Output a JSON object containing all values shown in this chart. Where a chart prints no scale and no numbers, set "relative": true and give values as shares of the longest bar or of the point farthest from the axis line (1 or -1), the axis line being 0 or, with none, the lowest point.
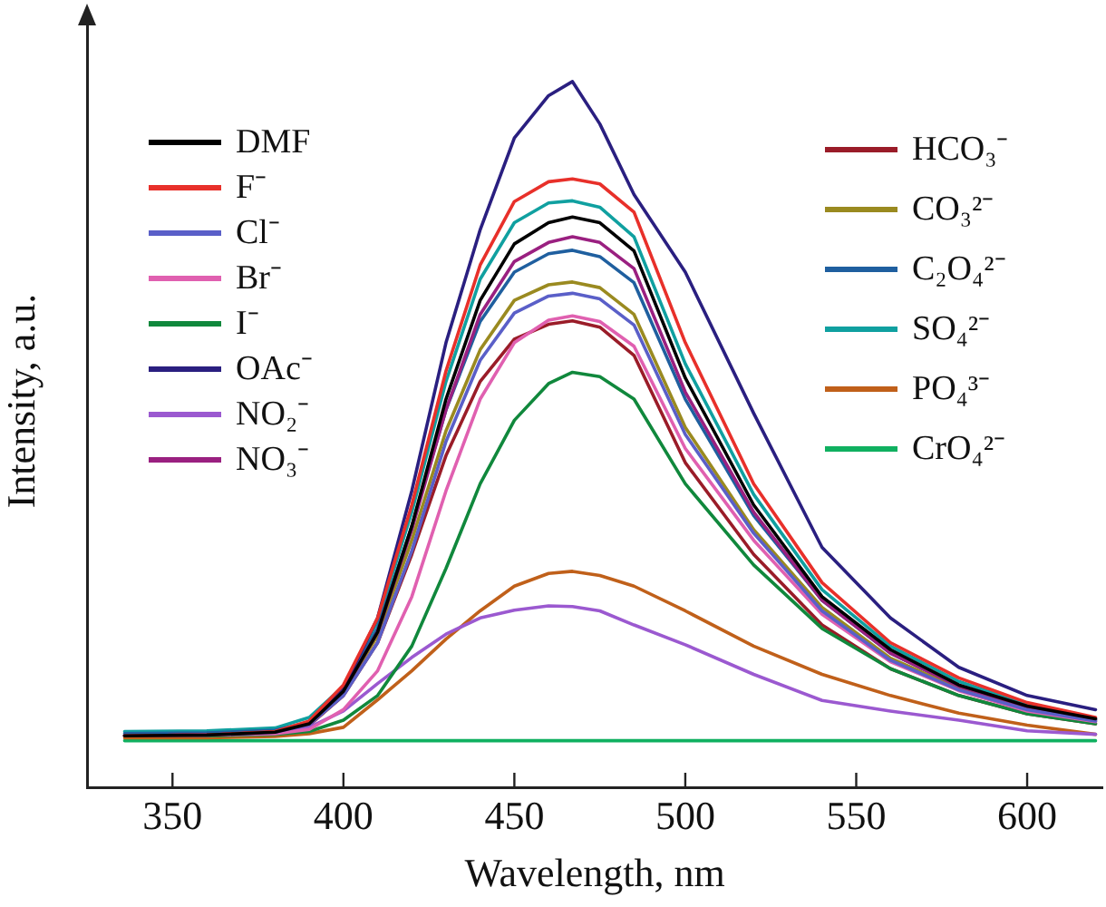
{
  "chart_data": {
    "type": "line",
    "xlabel": "Wavelength, nm",
    "ylabel": "Intensity, a.u.",
    "relative": true,
    "xlim": [
      325,
      622
    ],
    "xticks": [
      350,
      400,
      450,
      500,
      550,
      600
    ],
    "grid": false,
    "legend": "top",
    "marker": "none",
    "line_style": "solid",
    "x": [
      336,
      360,
      380,
      390,
      400,
      410,
      420,
      430,
      440,
      450,
      460,
      467,
      475,
      485,
      500,
      520,
      540,
      560,
      580,
      600,
      620
    ],
    "series": [
      {
        "name": "DMF",
        "color": "#000000",
        "values": [
          0.073,
          0.074,
          0.078,
          0.09,
          0.136,
          0.22,
          0.37,
          0.55,
          0.69,
          0.77,
          0.8,
          0.808,
          0.8,
          0.76,
          0.58,
          0.4,
          0.27,
          0.195,
          0.145,
          0.115,
          0.097
        ]
      },
      {
        "name": "F⁻",
        "color": "#e8302a",
        "values": [
          0.073,
          0.074,
          0.079,
          0.094,
          0.145,
          0.24,
          0.4,
          0.59,
          0.74,
          0.83,
          0.858,
          0.862,
          0.855,
          0.815,
          0.63,
          0.43,
          0.29,
          0.205,
          0.155,
          0.12,
          0.099
        ]
      },
      {
        "name": "Cl⁻",
        "color": "#5a5fc8",
        "values": [
          0.073,
          0.074,
          0.078,
          0.089,
          0.13,
          0.205,
          0.335,
          0.49,
          0.605,
          0.672,
          0.696,
          0.7,
          0.692,
          0.655,
          0.5,
          0.36,
          0.25,
          0.18,
          0.138,
          0.11,
          0.094
        ]
      },
      {
        "name": "Br⁻",
        "color": "#e060b0",
        "values": [
          0.073,
          0.074,
          0.076,
          0.082,
          0.11,
          0.165,
          0.27,
          0.42,
          0.55,
          0.63,
          0.662,
          0.668,
          0.66,
          0.625,
          0.48,
          0.35,
          0.245,
          0.178,
          0.137,
          0.108,
          0.093
        ]
      },
      {
        "name": "I⁻",
        "color": "#10883c",
        "values": [
          0.073,
          0.073,
          0.075,
          0.079,
          0.095,
          0.13,
          0.2,
          0.31,
          0.43,
          0.52,
          0.572,
          0.588,
          0.582,
          0.55,
          0.43,
          0.315,
          0.225,
          0.168,
          0.13,
          0.104,
          0.09
        ]
      },
      {
        "name": "OAc⁻",
        "color": "#2a1f80",
        "values": [
          0.073,
          0.074,
          0.078,
          0.092,
          0.14,
          0.24,
          0.42,
          0.63,
          0.79,
          0.92,
          0.98,
          1.0,
          0.94,
          0.84,
          0.73,
          0.53,
          0.34,
          0.24,
          0.17,
          0.13,
          0.11
        ]
      },
      {
        "name": "NO₂⁻",
        "color": "#9b59d0",
        "values": [
          0.073,
          0.074,
          0.076,
          0.085,
          0.108,
          0.147,
          0.184,
          0.217,
          0.24,
          0.251,
          0.257,
          0.256,
          0.25,
          0.23,
          0.202,
          0.16,
          0.123,
          0.108,
          0.095,
          0.08,
          0.075
        ]
      },
      {
        "name": "NO₃⁻",
        "color": "#9a2080",
        "values": [
          0.073,
          0.074,
          0.078,
          0.09,
          0.136,
          0.22,
          0.365,
          0.535,
          0.67,
          0.745,
          0.772,
          0.78,
          0.772,
          0.735,
          0.56,
          0.39,
          0.265,
          0.19,
          0.143,
          0.114,
          0.096
        ]
      },
      {
        "name": "HCO₃⁻",
        "color": "#9a1c28",
        "values": [
          0.073,
          0.074,
          0.078,
          0.088,
          0.13,
          0.205,
          0.33,
          0.47,
          0.575,
          0.635,
          0.656,
          0.661,
          0.652,
          0.612,
          0.46,
          0.33,
          0.23,
          0.168,
          0.13,
          0.104,
          0.09
        ]
      },
      {
        "name": "CO₃²⁻",
        "color": "#9a8a20",
        "values": [
          0.073,
          0.074,
          0.078,
          0.09,
          0.136,
          0.215,
          0.35,
          0.505,
          0.62,
          0.69,
          0.712,
          0.716,
          0.708,
          0.67,
          0.51,
          0.365,
          0.255,
          0.183,
          0.14,
          0.11,
          0.094
        ]
      },
      {
        "name": "C₂O₄²⁻",
        "color": "#1f5f9f",
        "values": [
          0.076,
          0.077,
          0.081,
          0.092,
          0.14,
          0.225,
          0.37,
          0.535,
          0.66,
          0.73,
          0.756,
          0.761,
          0.752,
          0.715,
          0.55,
          0.385,
          0.265,
          0.19,
          0.143,
          0.114,
          0.096
        ]
      },
      {
        "name": "SO₄²⁻",
        "color": "#10a0a0",
        "values": [
          0.079,
          0.08,
          0.084,
          0.099,
          0.143,
          0.235,
          0.39,
          0.575,
          0.72,
          0.8,
          0.828,
          0.831,
          0.822,
          0.78,
          0.6,
          0.415,
          0.28,
          0.2,
          0.15,
          0.117,
          0.098
        ]
      },
      {
        "name": "PO₄³⁻",
        "color": "#c0601a",
        "values": [
          0.07,
          0.07,
          0.072,
          0.076,
          0.085,
          0.124,
          0.165,
          0.21,
          0.25,
          0.285,
          0.303,
          0.306,
          0.3,
          0.285,
          0.25,
          0.2,
          0.16,
          0.13,
          0.105,
          0.088,
          0.075
        ]
      },
      {
        "name": "CrO₄²⁻",
        "color": "#10b060",
        "values": [
          0.066,
          0.066,
          0.066,
          0.066,
          0.066,
          0.066,
          0.066,
          0.066,
          0.066,
          0.066,
          0.066,
          0.066,
          0.066,
          0.066,
          0.066,
          0.066,
          0.066,
          0.066,
          0.066,
          0.066,
          0.066
        ]
      }
    ]
  }
}
